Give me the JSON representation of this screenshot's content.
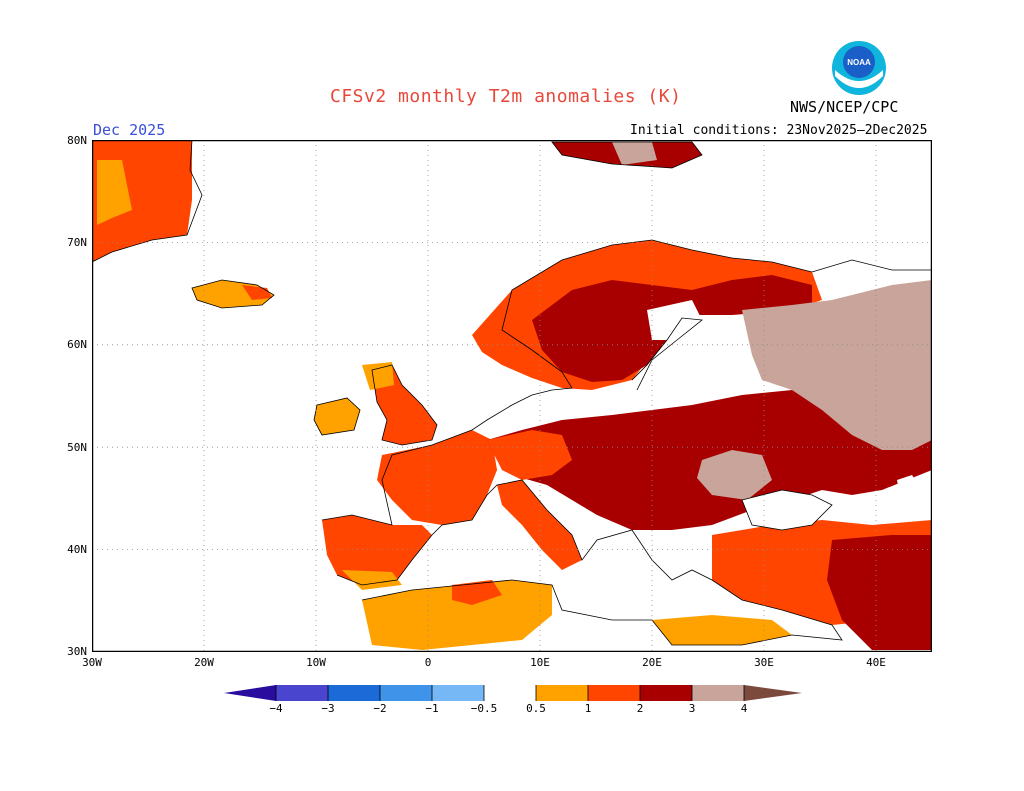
{
  "title": "CFSv2 monthly T2m anomalies (K)",
  "agency": "NWS/NCEP/CPC",
  "period": "Dec 2025",
  "initial_conditions": "Initial conditions: 23Nov2025–2Dec2025",
  "logo": {
    "text": "NOAA",
    "colors": [
      "#1a5fc8",
      "#0fb5dc"
    ]
  },
  "lat_labels": [
    "80N",
    "70N",
    "60N",
    "50N",
    "40N",
    "30N"
  ],
  "lon_labels": [
    "30W",
    "20W",
    "10W",
    "0",
    "10E",
    "20E",
    "30E",
    "40E"
  ],
  "colorbar": {
    "labels": [
      "−4",
      "−3",
      "−2",
      "−1",
      "−0.5",
      "0.5",
      "1",
      "2",
      "3",
      "4"
    ],
    "colors": {
      "lt_m4": "#2a0d9e",
      "m4_m3": "#4a45cf",
      "m3_m2": "#1c6ad8",
      "m2_m1": "#3f94ea",
      "m1_m05": "#76b8f6",
      "neutral": "#ffffff",
      "p05_1": "#ffa200",
      "p1_2": "#ff4500",
      "p2_3": "#a80000",
      "p3_4": "#c8a49a",
      "gt_4": "#7c4a3d"
    }
  },
  "regions": [
    {
      "name": "Iberia",
      "category": "p1_2"
    },
    {
      "name": "France",
      "category": "p1_2"
    },
    {
      "name": "British Isles",
      "category": "p1_2"
    },
    {
      "name": "Central Europe",
      "category": "p2_3"
    },
    {
      "name": "Scandinavia",
      "category": "p2_3"
    },
    {
      "name": "Western Russia",
      "category": "p3_4"
    },
    {
      "name": "North Africa",
      "category": "p05_1"
    },
    {
      "name": "Iceland",
      "category": "p05_1"
    },
    {
      "name": "Greenland",
      "category": "p1_2"
    }
  ]
}
